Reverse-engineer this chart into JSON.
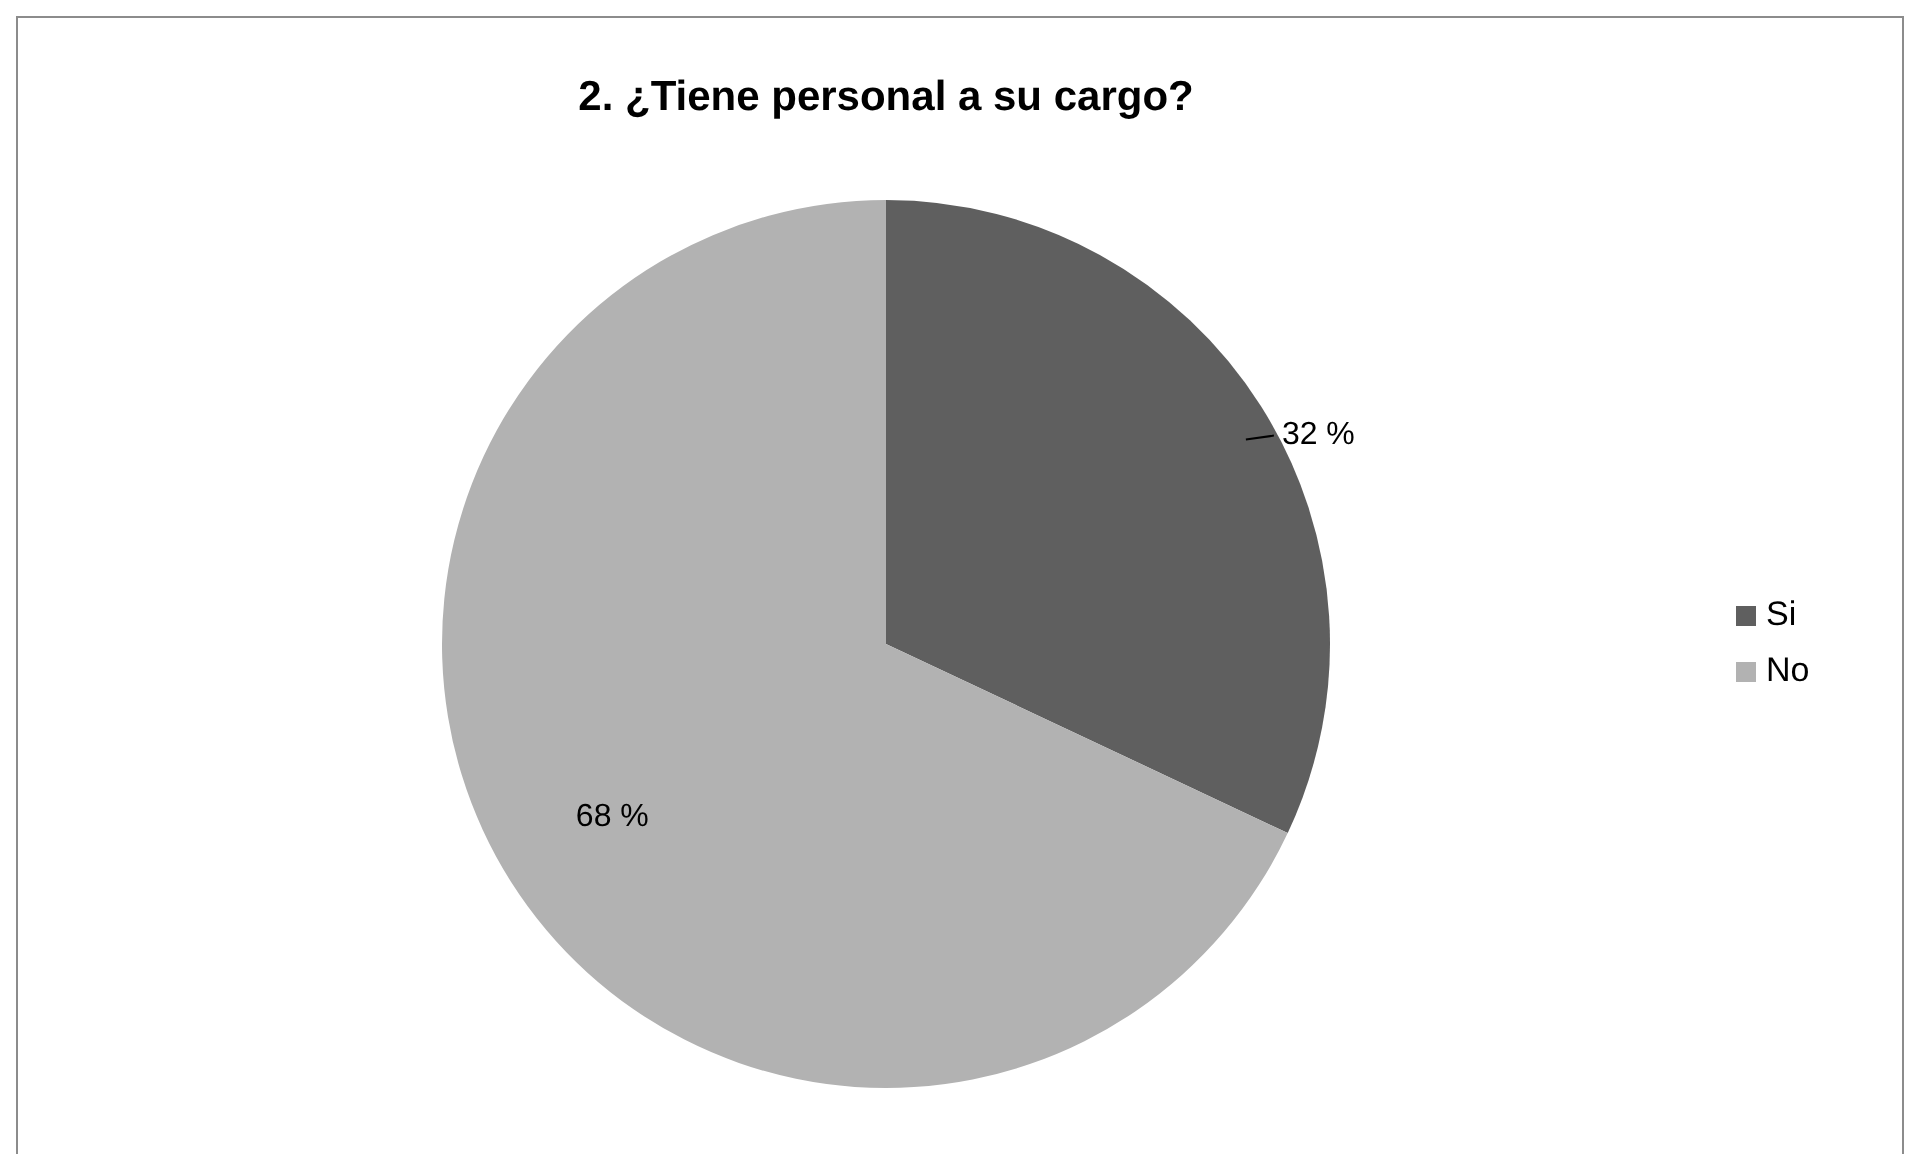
{
  "chart_data": {
    "type": "pie",
    "title": "2. ¿Tiene personal a su cargo?",
    "categories": [
      "Si",
      "No"
    ],
    "values": [
      32,
      68
    ],
    "colors": [
      "#5f5f5f",
      "#b2b2b2"
    ],
    "value_labels": [
      "32 %",
      "68 %"
    ],
    "legend": "right"
  }
}
